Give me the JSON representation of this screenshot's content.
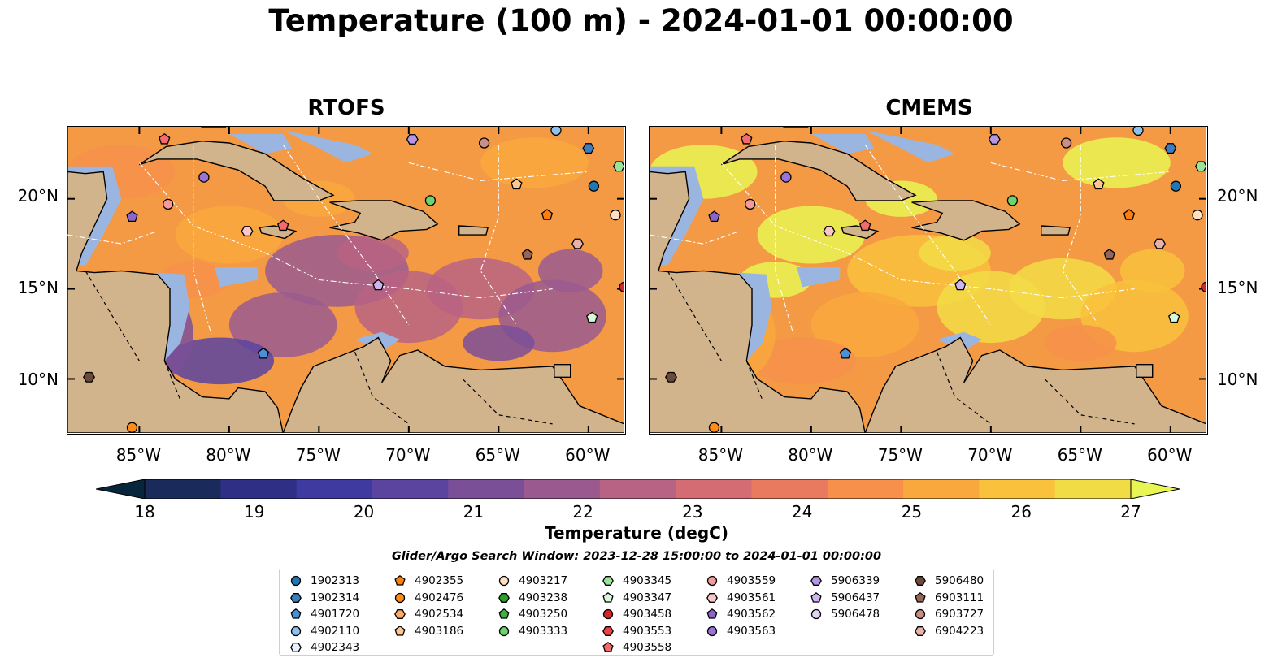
{
  "title": "Temperature (100 m) - 2024-01-01 00:00:00",
  "panels": [
    {
      "title": "RTOFS",
      "warm_level": 0.45
    },
    {
      "title": "CMEMS",
      "warm_level": 0.82
    }
  ],
  "map_extent": {
    "lon_min": -89,
    "lon_max": -58,
    "lat_min": 7,
    "lat_max": 24
  },
  "x_ticks": [
    "85°W",
    "80°W",
    "75°W",
    "70°W",
    "65°W",
    "60°W"
  ],
  "x_tick_lons": [
    -85,
    -80,
    -75,
    -70,
    -65,
    -60
  ],
  "y_ticks": [
    "20°N",
    "15°N",
    "10°N"
  ],
  "y_tick_lats": [
    20,
    15,
    10
  ],
  "colorbar": {
    "label": "Temperature (degC)",
    "ticks": [
      "18",
      "19",
      "20",
      "21",
      "22",
      "23",
      "24",
      "25",
      "26",
      "27"
    ],
    "min": 18,
    "max": 27,
    "colors": [
      "#07263b",
      "#1a2a5a",
      "#2e2f85",
      "#3e3aa0",
      "#5a44a0",
      "#7a4f98",
      "#9a5a8f",
      "#b86383",
      "#d46d73",
      "#ea7a5f",
      "#f6904a",
      "#f9a83d",
      "#f9c13c",
      "#f2dc46",
      "#e8f552"
    ]
  },
  "search_window": "Glider/Argo Search Window: 2023-12-28 15:00:00 to 2024-01-01 00:00:00",
  "colors": {
    "land": "#d2b48c",
    "shelf": "#9ab6e0",
    "deep": "#07263b"
  },
  "legend": [
    {
      "id": "1902313",
      "marker": "circle",
      "color": "#1f77b4"
    },
    {
      "id": "1902314",
      "marker": "hexagon",
      "color": "#3b7dc0"
    },
    {
      "id": "4901720",
      "marker": "pentagon",
      "color": "#4a90d9"
    },
    {
      "id": "4902110",
      "marker": "circle",
      "color": "#8ec1ef"
    },
    {
      "id": "4902343",
      "marker": "hexagon",
      "color": "#e8f2ff"
    },
    {
      "id": "4902355",
      "marker": "pentagon",
      "color": "#ff7f0e"
    },
    {
      "id": "4902476",
      "marker": "circle",
      "color": "#ff8c1a"
    },
    {
      "id": "4902534",
      "marker": "hexagon",
      "color": "#ffab60"
    },
    {
      "id": "4903186",
      "marker": "pentagon",
      "color": "#ffc58f"
    },
    {
      "id": "4903217",
      "marker": "circle",
      "color": "#ffe0c2"
    },
    {
      "id": "4903238",
      "marker": "hexagon",
      "color": "#2ca02c"
    },
    {
      "id": "4903250",
      "marker": "pentagon",
      "color": "#3fb23f"
    },
    {
      "id": "4903333",
      "marker": "circle",
      "color": "#6cd46c"
    },
    {
      "id": "4903345",
      "marker": "hexagon",
      "color": "#9be39b"
    },
    {
      "id": "4903347",
      "marker": "pentagon",
      "color": "#d9f8d9"
    },
    {
      "id": "4903458",
      "marker": "circle",
      "color": "#d62728"
    },
    {
      "id": "4903553",
      "marker": "hexagon",
      "color": "#e8454a"
    },
    {
      "id": "4903558",
      "marker": "pentagon",
      "color": "#f26b6e"
    },
    {
      "id": "4903559",
      "marker": "circle",
      "color": "#f59a9c"
    },
    {
      "id": "4903561",
      "marker": "hexagon",
      "color": "#fbc6c7"
    },
    {
      "id": "4903562",
      "marker": "pentagon",
      "color": "#8c65c9"
    },
    {
      "id": "4903563",
      "marker": "circle",
      "color": "#9b72d6"
    },
    {
      "id": "5906339",
      "marker": "hexagon",
      "color": "#b596e3"
    },
    {
      "id": "5906437",
      "marker": "pentagon",
      "color": "#cdb5ef"
    },
    {
      "id": "5906478",
      "marker": "circle",
      "color": "#e3d3fb"
    },
    {
      "id": "5906480",
      "marker": "hexagon",
      "color": "#6b4a3a"
    },
    {
      "id": "6903111",
      "marker": "pentagon",
      "color": "#95655a"
    },
    {
      "id": "6903727",
      "marker": "circle",
      "color": "#c98f82"
    },
    {
      "id": "6904223",
      "marker": "hexagon",
      "color": "#e8b2a6"
    }
  ],
  "floats": [
    {
      "id": "4903558",
      "lon": -83.6,
      "lat": 23.3
    },
    {
      "id": "5906339",
      "lon": -69.8,
      "lat": 23.3
    },
    {
      "id": "6903727",
      "lon": -65.8,
      "lat": 23.1
    },
    {
      "id": "4902110",
      "lon": -61.8,
      "lat": 23.8
    },
    {
      "id": "1902314",
      "lon": -60.0,
      "lat": 22.8
    },
    {
      "id": "4903345",
      "lon": -58.3,
      "lat": 21.8
    },
    {
      "id": "4903563",
      "lon": -81.4,
      "lat": 21.2
    },
    {
      "id": "4903186",
      "lon": -64.0,
      "lat": 20.8
    },
    {
      "id": "1902313",
      "lon": -59.7,
      "lat": 20.7
    },
    {
      "id": "4903559",
      "lon": -83.4,
      "lat": 19.7
    },
    {
      "id": "4903333",
      "lon": -68.8,
      "lat": 19.9
    },
    {
      "id": "4903562",
      "lon": -85.4,
      "lat": 19.0
    },
    {
      "id": "4902355",
      "lon": -62.3,
      "lat": 19.1
    },
    {
      "id": "4903217",
      "lon": -58.5,
      "lat": 19.1
    },
    {
      "id": "4903558",
      "lon": -77.0,
      "lat": 18.5
    },
    {
      "id": "4903561",
      "lon": -79.0,
      "lat": 18.2
    },
    {
      "id": "6904223",
      "lon": -60.6,
      "lat": 17.5
    },
    {
      "id": "6903111",
      "lon": -63.4,
      "lat": 16.9
    },
    {
      "id": "5906437",
      "lon": -71.7,
      "lat": 15.2
    },
    {
      "id": "4903458",
      "lon": -58.0,
      "lat": 15.1
    },
    {
      "id": "4903347",
      "lon": -59.8,
      "lat": 13.4
    },
    {
      "id": "4901720",
      "lon": -78.1,
      "lat": 11.4
    },
    {
      "id": "5906480",
      "lon": -87.8,
      "lat": 10.1
    },
    {
      "id": "4902476",
      "lon": -85.4,
      "lat": 7.3
    }
  ]
}
